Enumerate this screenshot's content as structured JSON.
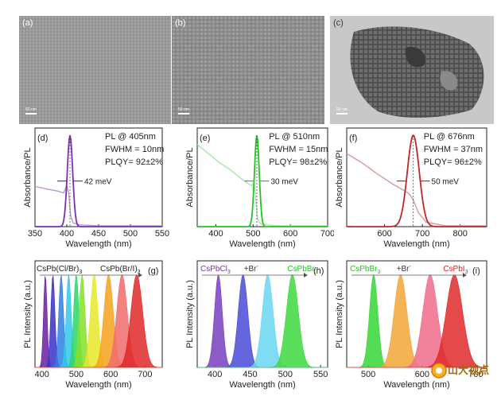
{
  "tem": {
    "panels": [
      {
        "letter": "(a)",
        "scale": "50 nm"
      },
      {
        "letter": "(b)",
        "scale": "50 nm"
      },
      {
        "letter": "(c)",
        "scale": "50 nm"
      }
    ]
  },
  "absorbance_axis_label": "Absorbance/PL",
  "pl_axis_label": "PL Intensity (a.u.)",
  "wavelength_label": "Wavelength (nm)",
  "colors": {
    "violet": "#7a2fb0",
    "green": "#22c322",
    "red": "#c0262a",
    "absorbance_violet": "#b79ad0",
    "absorbance_green": "#a8e4a8",
    "absorbance_red": "#d79a9a"
  },
  "chart_data": [
    {
      "id": "d",
      "type": "line",
      "letter": "(d)",
      "annotations": [
        "PL @ 405nm",
        "FWHM = 10nm",
        "PLQY= 92±2%"
      ],
      "width_label": "42 meV",
      "xlabel": "Wavelength (nm)",
      "ylabel": "Absorbance/PL",
      "xlim": [
        350,
        550
      ],
      "ylim": [
        0,
        1.08
      ],
      "xticks": [
        350,
        400,
        450,
        500,
        550
      ],
      "series": [
        {
          "kind": "pl",
          "center": 405,
          "fwhm": 10,
          "peak": 1.0
        },
        {
          "kind": "absorbance",
          "x": [
            350,
            370,
            385,
            395,
            400,
            403,
            406,
            410,
            420,
            450,
            500,
            550
          ],
          "y": [
            0.44,
            0.41,
            0.39,
            0.37,
            0.45,
            0.36,
            0.12,
            0.04,
            0.02,
            0.01,
            0.01,
            0.01
          ]
        }
      ]
    },
    {
      "id": "e",
      "type": "line",
      "letter": "(e)",
      "annotations": [
        "PL @ 510nm",
        "FWHM = 15nm",
        "PLQY= 98±2%"
      ],
      "width_label": "30 meV",
      "xlabel": "Wavelength (nm)",
      "ylabel": "Absorbance/PL",
      "xlim": [
        350,
        700
      ],
      "ylim": [
        0,
        1.08
      ],
      "xticks": [
        400,
        500,
        600,
        700
      ],
      "series": [
        {
          "kind": "pl",
          "center": 510,
          "fwhm": 15,
          "peak": 1.0
        },
        {
          "kind": "absorbance",
          "x": [
            350,
            380,
            410,
            440,
            470,
            495,
            503,
            507,
            512,
            520,
            560,
            700
          ],
          "y": [
            0.9,
            0.8,
            0.7,
            0.62,
            0.52,
            0.45,
            0.47,
            0.3,
            0.08,
            0.03,
            0.01,
            0.01
          ]
        }
      ]
    },
    {
      "id": "f",
      "type": "line",
      "letter": "(f)",
      "annotations": [
        "PL @ 676nm",
        "FWHM = 37nm",
        "PLQY= 96±2%"
      ],
      "width_label": "50 meV",
      "xlabel": "Wavelength (nm)",
      "ylabel": "Absorbance/PL",
      "xlim": [
        500,
        870
      ],
      "ylim": [
        0,
        1.08
      ],
      "xticks": [
        600,
        700,
        800
      ],
      "series": [
        {
          "kind": "pl",
          "center": 676,
          "fwhm": 37,
          "peak": 1.0
        },
        {
          "kind": "absorbance",
          "x": [
            500,
            540,
            580,
            620,
            650,
            665,
            675,
            690,
            710,
            760,
            870
          ],
          "y": [
            0.8,
            0.7,
            0.58,
            0.47,
            0.4,
            0.36,
            0.3,
            0.15,
            0.05,
            0.01,
            0.01
          ]
        }
      ]
    },
    {
      "id": "g",
      "type": "area",
      "letter": "(g)",
      "labels": [
        {
          "text": "CsPb(Cl/Br)",
          "sub": "3"
        },
        {
          "text": "CsPb(Br/I)",
          "sub": "3"
        }
      ],
      "xlabel": "Wavelength (nm)",
      "ylabel": "PL Intensity (a.u.)",
      "xlim": [
        380,
        750
      ],
      "ylim": [
        0,
        1.15
      ],
      "xticks": [
        400,
        500,
        600,
        700
      ],
      "series": [
        {
          "center": 410,
          "fwhm": 12,
          "color": "#6a1fa0"
        },
        {
          "center": 432,
          "fwhm": 14,
          "color": "#3a2fc8"
        },
        {
          "center": 456,
          "fwhm": 16,
          "color": "#2f7fe0"
        },
        {
          "center": 478,
          "fwhm": 17,
          "color": "#33c8e8"
        },
        {
          "center": 500,
          "fwhm": 18,
          "color": "#2bd66a"
        },
        {
          "center": 517,
          "fwhm": 20,
          "color": "#84e02c"
        },
        {
          "center": 552,
          "fwhm": 26,
          "color": "#e8e82a"
        },
        {
          "center": 594,
          "fwhm": 32,
          "color": "#f6a21e"
        },
        {
          "center": 633,
          "fwhm": 36,
          "color": "#f06c6c"
        },
        {
          "center": 676,
          "fwhm": 40,
          "color": "#e02828"
        }
      ]
    },
    {
      "id": "h",
      "type": "area",
      "letter": "(h)",
      "labels": [
        {
          "text": "CsPbCl",
          "sub": "3",
          "color": "#7a2fb0"
        },
        {
          "text": "+Br",
          "sup": "-",
          "color": "#333333"
        },
        {
          "text": "CsPbBr",
          "sub": "3",
          "color": "#22c322"
        }
      ],
      "xlabel": "Wavelength (nm)",
      "ylabel": "PL Intensity (a.u.)",
      "xlim": [
        375,
        560
      ],
      "ylim": [
        0,
        1.15
      ],
      "xticks": [
        400,
        450,
        500,
        550
      ],
      "series": [
        {
          "center": 405,
          "fwhm": 13,
          "color": "#7a3fc0"
        },
        {
          "center": 440,
          "fwhm": 16,
          "color": "#4a4ad8"
        },
        {
          "center": 475,
          "fwhm": 18,
          "color": "#6ad6f0"
        },
        {
          "center": 510,
          "fwhm": 20,
          "color": "#3ed83e"
        }
      ]
    },
    {
      "id": "i",
      "type": "area",
      "letter": "(i)",
      "labels": [
        {
          "text": "CsPbBr",
          "sub": "3",
          "color": "#22c322"
        },
        {
          "text": "+Br",
          "sup": "-",
          "color": "#333333"
        },
        {
          "text": "CsPbI",
          "sub": "3",
          "color": "#d02828"
        }
      ],
      "xlabel": "Wavelength (nm)",
      "ylabel": "PL Intensity (a.u.)",
      "xlim": [
        460,
        720
      ],
      "ylim": [
        0,
        1.15
      ],
      "xticks": [
        500,
        600,
        700
      ],
      "series": [
        {
          "center": 510,
          "fwhm": 18,
          "color": "#36d636"
        },
        {
          "center": 560,
          "fwhm": 28,
          "color": "#f2a63a"
        },
        {
          "center": 615,
          "fwhm": 32,
          "color": "#f06c8a"
        },
        {
          "center": 660,
          "fwhm": 36,
          "color": "#e02a2a"
        }
      ]
    }
  ],
  "watermark": {
    "text": "山大视点"
  }
}
